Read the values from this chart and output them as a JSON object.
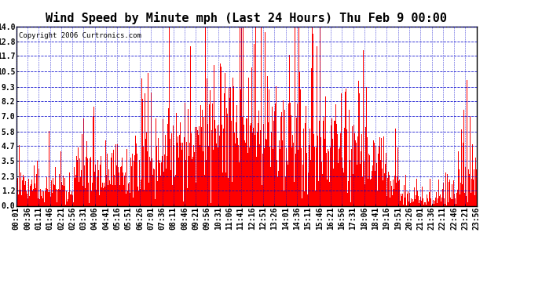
{
  "title": "Wind Speed by Minute mph (Last 24 Hours) Thu Feb 9 00:00",
  "copyright": "Copyright 2006 Curtronics.com",
  "bar_color": "#FF0000",
  "background_color": "#FFFFFF",
  "grid_color": "#0000CC",
  "yticks": [
    0.0,
    1.2,
    2.3,
    3.5,
    4.7,
    5.8,
    7.0,
    8.2,
    9.3,
    10.5,
    11.7,
    12.8,
    14.0
  ],
  "ylim": [
    0.0,
    14.0
  ],
  "total_minutes": 1440,
  "title_fontsize": 11,
  "copyright_fontsize": 6.5,
  "tick_labelsize": 7,
  "xtick_labels": [
    "00:01",
    "00:36",
    "01:11",
    "01:46",
    "02:21",
    "02:56",
    "03:31",
    "04:06",
    "04:41",
    "05:16",
    "05:51",
    "06:26",
    "07:01",
    "07:36",
    "08:11",
    "08:46",
    "09:21",
    "09:56",
    "10:31",
    "11:06",
    "11:41",
    "12:16",
    "12:51",
    "13:26",
    "14:01",
    "14:36",
    "15:11",
    "15:46",
    "16:21",
    "16:56",
    "17:31",
    "18:06",
    "18:41",
    "19:16",
    "19:51",
    "20:26",
    "21:01",
    "21:36",
    "22:11",
    "22:46",
    "23:21",
    "23:56"
  ]
}
